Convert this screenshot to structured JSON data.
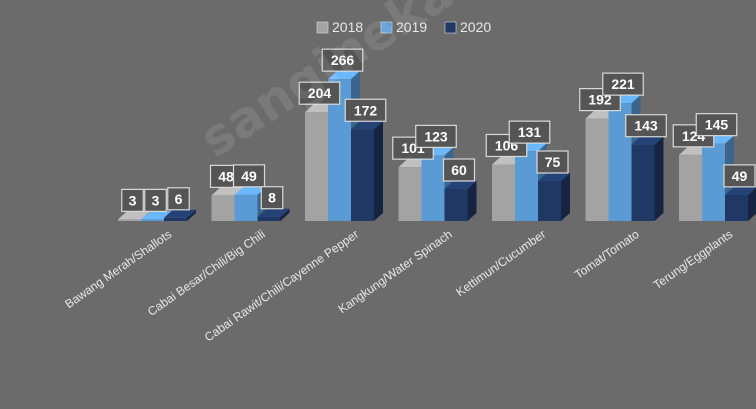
{
  "chart_data": {
    "type": "bar",
    "title": "",
    "xlabel": "",
    "ylabel": "",
    "ylim": [
      0,
      300
    ],
    "grid": false,
    "legend_position": "top-center",
    "categories": [
      "Bawang Merah/Shallots",
      "Cabai Besar/Chili/Big Chili",
      "Cabai Rawit/Chili/Cayenne Pepper",
      "Kangkung/Water Spinach",
      "Kettimun/Cucumber",
      "Tomat/Tomato",
      "Terung/Eggplants"
    ],
    "series": [
      {
        "name": "2018",
        "values": [
          3,
          48,
          204,
          101,
          106,
          192,
          124
        ],
        "color": "#a3a3a3"
      },
      {
        "name": "2019",
        "values": [
          3,
          49,
          266,
          123,
          131,
          221,
          145
        ],
        "color": "#5b9bd5"
      },
      {
        "name": "2020",
        "values": [
          6,
          8,
          172,
          60,
          75,
          143,
          49
        ],
        "color": "#1f3864"
      }
    ]
  },
  "watermark": "sanginekab.bps.go.id"
}
